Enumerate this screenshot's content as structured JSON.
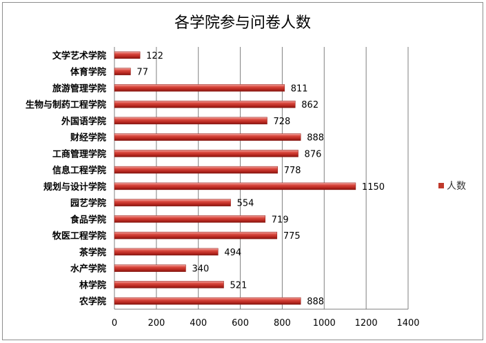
{
  "chart_data": {
    "type": "bar",
    "orientation": "horizontal",
    "title": "各学院参与问卷人数",
    "categories": [
      "文学艺术学院",
      "体育学院",
      "旅游管理学院",
      "生物与制药工程学院",
      "外国语学院",
      "财经学院",
      "工商管理学院",
      "信息工程学院",
      "规划与设计学院",
      "园艺学院",
      "食品学院",
      "牧医工程学院",
      "茶学院",
      "水产学院",
      "林学院",
      "农学院"
    ],
    "series": [
      {
        "name": "人数",
        "values": [
          122,
          77,
          811,
          862,
          728,
          888,
          876,
          778,
          1150,
          554,
          719,
          775,
          494,
          340,
          521,
          888
        ],
        "color": "#c0392b"
      }
    ],
    "xlim": [
      0,
      1400
    ],
    "xticks": [
      "0",
      "200",
      "400",
      "600",
      "800",
      "1000",
      "1200",
      "1400"
    ],
    "grid": true,
    "legend_position": "right"
  }
}
